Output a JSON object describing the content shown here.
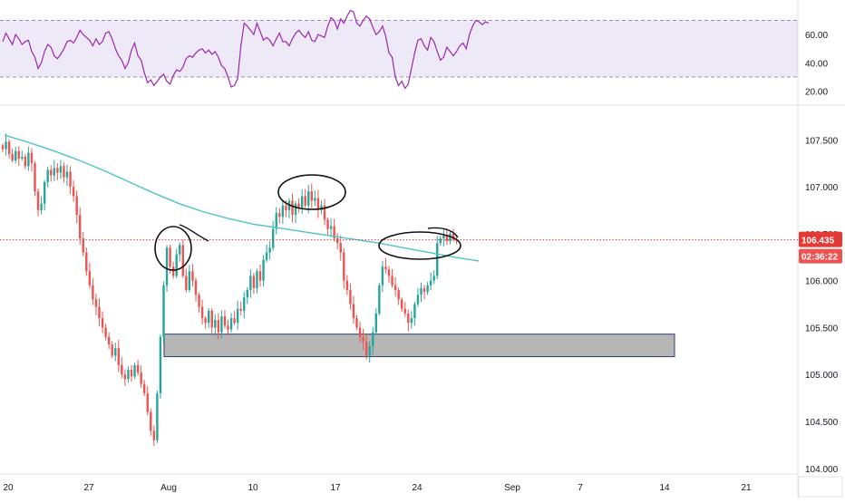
{
  "chart_data": [
    {
      "type": "line",
      "panel": "rsi",
      "ylim": [
        14,
        78
      ],
      "band": [
        30,
        70
      ],
      "band_color": "#7e57c2",
      "line_color": "#9c27b0",
      "y_ticks": [
        "60.00",
        "40.00",
        "20.00"
      ],
      "y_tick_values": [
        60,
        40,
        20
      ],
      "series": [
        {
          "values": [
            55,
            61,
            57,
            53,
            60,
            57,
            53,
            55,
            56,
            48,
            44,
            36,
            40,
            48,
            53,
            51,
            45,
            43,
            46,
            50,
            55,
            56,
            54,
            58,
            63,
            60,
            58,
            56,
            52,
            57,
            53,
            55,
            61,
            62,
            57,
            50,
            45,
            42,
            36,
            40,
            49,
            54,
            45,
            42,
            33,
            26,
            28,
            24,
            27,
            30,
            32,
            27,
            25,
            31,
            35,
            34,
            37,
            43,
            45,
            44,
            47,
            49,
            50,
            47,
            49,
            46,
            48,
            44,
            38,
            36,
            30,
            23,
            24,
            29,
            52,
            68,
            66,
            63,
            60,
            68,
            62,
            56,
            58,
            56,
            52,
            57,
            61,
            55,
            55,
            52,
            57,
            61,
            63,
            60,
            58,
            62,
            56,
            55,
            60,
            59,
            58,
            66,
            72,
            70,
            64,
            71,
            68,
            73,
            77,
            76,
            68,
            66,
            70,
            73,
            71,
            65,
            60,
            62,
            66,
            59,
            47,
            44,
            30,
            24,
            27,
            22,
            25,
            36,
            47,
            56,
            57,
            52,
            49,
            58,
            55,
            48,
            42,
            44,
            51,
            48,
            45,
            48,
            52,
            54,
            50,
            60,
            66,
            70,
            69,
            67,
            69,
            68
          ]
        }
      ]
    },
    {
      "type": "candlestick",
      "panel": "price",
      "ylim": [
        103.95,
        107.85
      ],
      "up_color": "#26a69a",
      "down_color": "#ef5350",
      "ma_color": "#4fc3c7",
      "price_line_color": "#e53935",
      "countdown_color": "#ef5350",
      "y_ticks": [
        "107.500",
        "107.000",
        "106.500",
        "106.000",
        "105.500",
        "105.000",
        "104.500",
        "104.000"
      ],
      "y_tick_values": [
        107.5,
        107.0,
        106.5,
        106.0,
        105.5,
        105.0,
        104.5,
        104.0
      ],
      "x_ticks": [
        "20",
        "27",
        "Aug",
        "10",
        "17",
        "24",
        "Sep",
        "7",
        "14",
        "21"
      ],
      "last_price": 106.435,
      "last_price_label": "106.435",
      "countdown_label": "02:36:22",
      "closes": [
        107.4,
        107.48,
        107.35,
        107.28,
        107.38,
        107.3,
        107.32,
        107.22,
        107.36,
        107.25,
        106.95,
        106.75,
        106.82,
        107.05,
        107.18,
        107.12,
        107.2,
        107.15,
        107.22,
        107.1,
        107.16,
        107.0,
        106.9,
        106.7,
        106.45,
        106.3,
        106.1,
        105.95,
        105.8,
        105.72,
        105.6,
        105.5,
        105.4,
        105.32,
        105.2,
        105.28,
        105.1,
        105.0,
        104.95,
        105.05,
        104.98,
        105.1,
        105.02,
        104.9,
        104.8,
        104.6,
        104.4,
        104.3,
        104.8,
        105.4,
        105.95,
        106.35,
        106.15,
        106.05,
        106.28,
        106.38,
        106.05,
        105.9,
        106.1,
        106.0,
        105.85,
        105.72,
        105.6,
        105.55,
        105.68,
        105.5,
        105.58,
        105.45,
        105.62,
        105.52,
        105.48,
        105.6,
        105.55,
        105.7,
        105.68,
        105.82,
        105.9,
        106.05,
        105.92,
        106.1,
        106.0,
        106.22,
        106.3,
        106.35,
        106.55,
        106.72,
        106.68,
        106.8,
        106.75,
        106.85,
        106.7,
        106.82,
        106.78,
        106.9,
        106.8,
        106.95,
        106.85,
        106.88,
        106.75,
        106.8,
        106.65,
        106.55,
        106.58,
        106.45,
        106.4,
        106.3,
        106.0,
        105.9,
        105.75,
        105.6,
        105.5,
        105.4,
        105.35,
        105.2,
        105.3,
        105.45,
        105.65,
        105.95,
        106.15,
        106.12,
        106.05,
        105.95,
        105.9,
        105.8,
        105.7,
        105.65,
        105.55,
        105.6,
        105.75,
        105.85,
        105.92,
        105.88,
        105.95,
        106.0,
        106.05,
        106.4,
        106.45,
        106.48,
        106.42,
        106.5,
        106.44,
        106.435
      ],
      "ma": [
        107.55,
        107.47,
        107.38,
        107.28,
        107.17,
        107.05,
        106.93,
        106.82,
        106.73,
        106.66,
        106.6,
        106.56,
        106.52,
        106.48,
        106.44,
        106.4,
        106.35,
        106.3,
        106.25,
        106.21
      ],
      "zone": [
        105.19,
        105.43
      ]
    }
  ]
}
